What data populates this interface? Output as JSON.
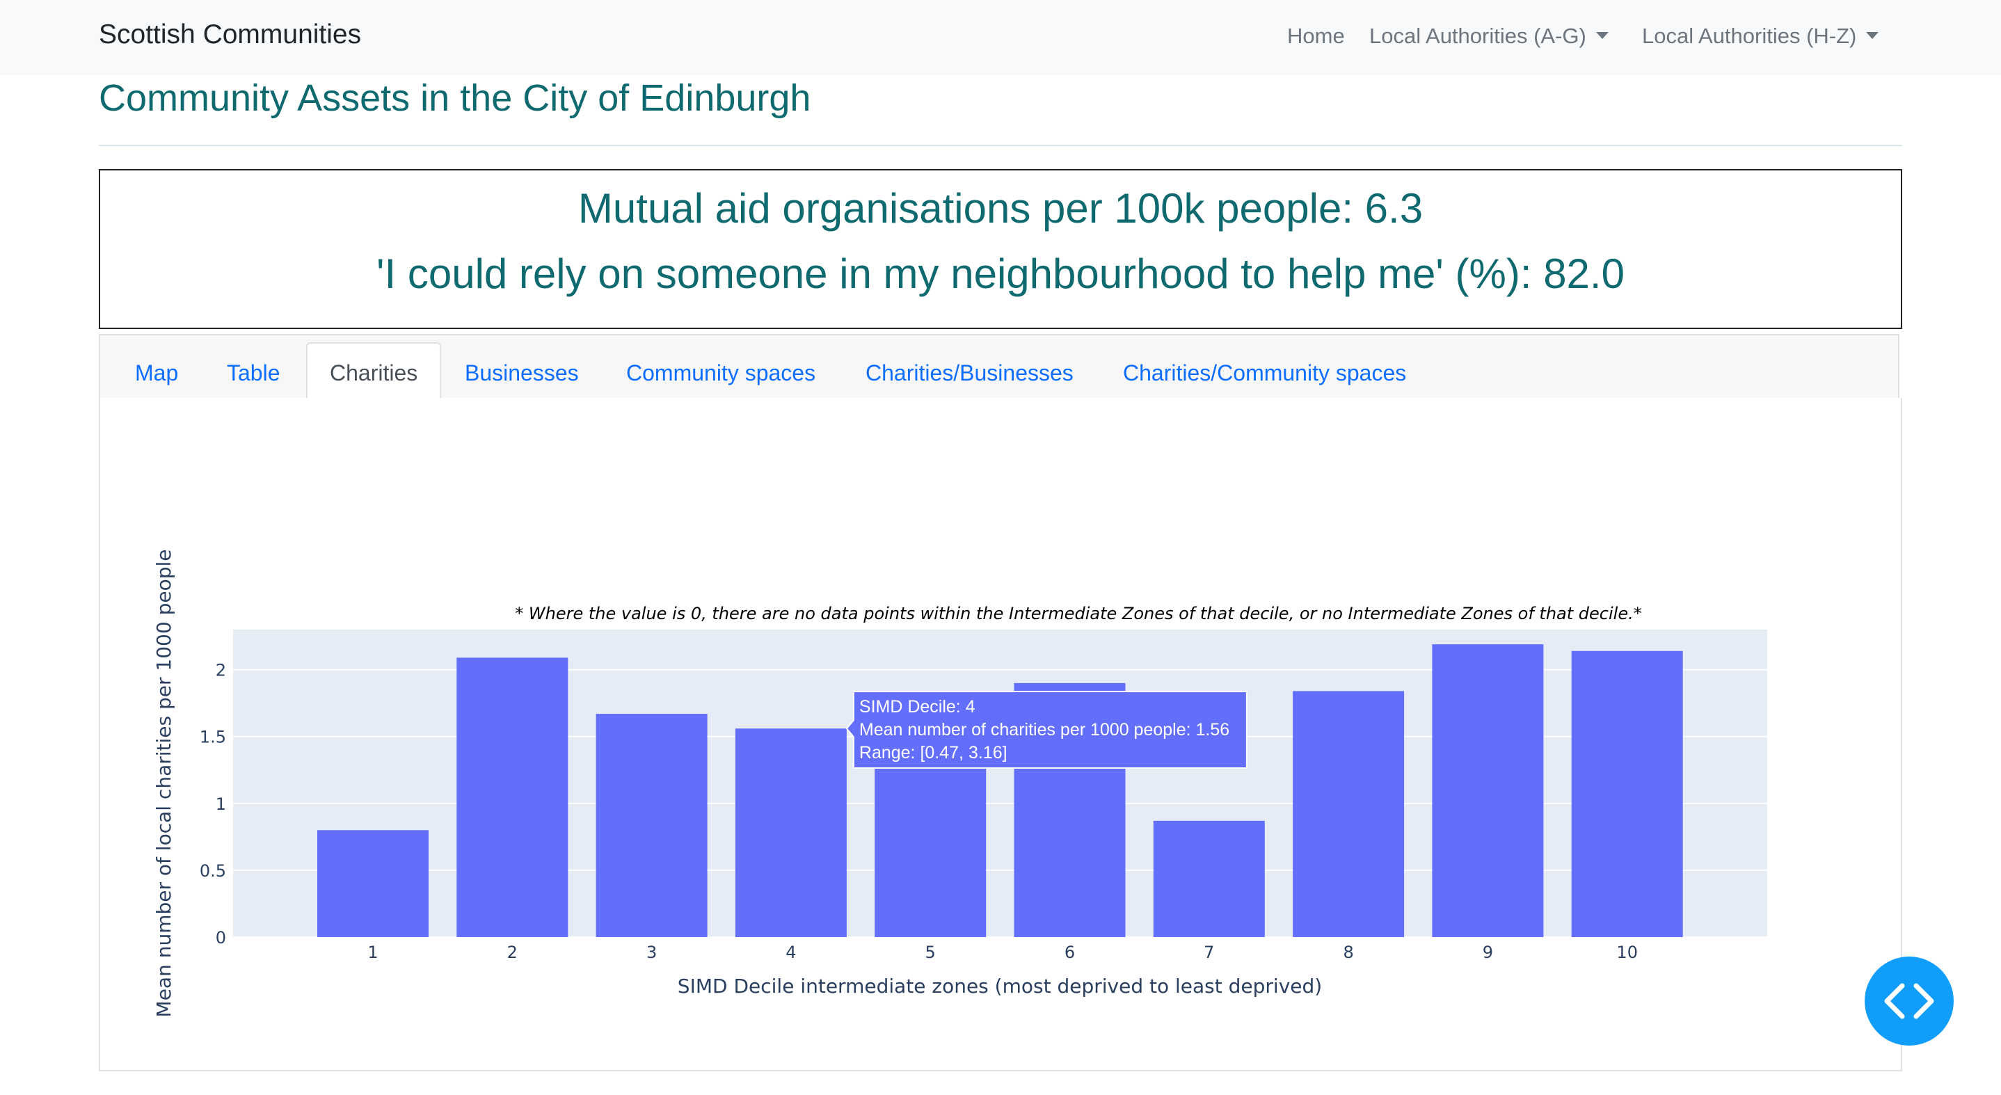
{
  "navbar": {
    "brand": "Scottish Communities",
    "links": [
      {
        "label": "Home"
      },
      {
        "label": "Local Authorities (A-G)"
      },
      {
        "label": "Local Authorities (H-Z)"
      }
    ]
  },
  "page": {
    "title": "Community Assets in the City of Edinburgh"
  },
  "stats": {
    "line1": "Mutual aid organisations per 100k people: 6.3",
    "line2": "'I could rely on someone in my neighbourhood to help me' (%): 82.0"
  },
  "tabs": [
    {
      "label": "Map"
    },
    {
      "label": "Table"
    },
    {
      "label": "Charities",
      "active": true
    },
    {
      "label": "Businesses"
    },
    {
      "label": "Community spaces"
    },
    {
      "label": "Charities/Businesses"
    },
    {
      "label": "Charities/Community spaces"
    }
  ],
  "chart_data": {
    "type": "bar",
    "title": "* Where the value is 0, there are no data points within the Intermediate Zones of that decile, or no Intermediate Zones of that decile.*",
    "xlabel": "SIMD Decile intermediate zones (most deprived to least deprived)",
    "ylabel": "Mean number of local charities per 1000 people",
    "categories": [
      "1",
      "2",
      "3",
      "4",
      "5",
      "6",
      "7",
      "8",
      "9",
      "10"
    ],
    "values": [
      0.8,
      2.09,
      1.67,
      1.56,
      1.45,
      1.9,
      0.87,
      1.84,
      2.19,
      2.14
    ],
    "yticks": [
      0,
      0.5,
      1,
      1.5,
      2
    ],
    "ytick_labels": [
      "0",
      "0.5",
      "1",
      "1.5",
      "2"
    ],
    "ylim": [
      0,
      2.3
    ],
    "bar_color": "#636efa",
    "plot_bg": "#e5ecf6",
    "grid": true,
    "tooltip": {
      "line1": "SIMD Decile: 4",
      "line2": "Mean number of charities per 1000 people: 1.56",
      "line3": "Range: [0.47, 3.16]"
    }
  },
  "fab": {
    "icon": "code-icon"
  }
}
